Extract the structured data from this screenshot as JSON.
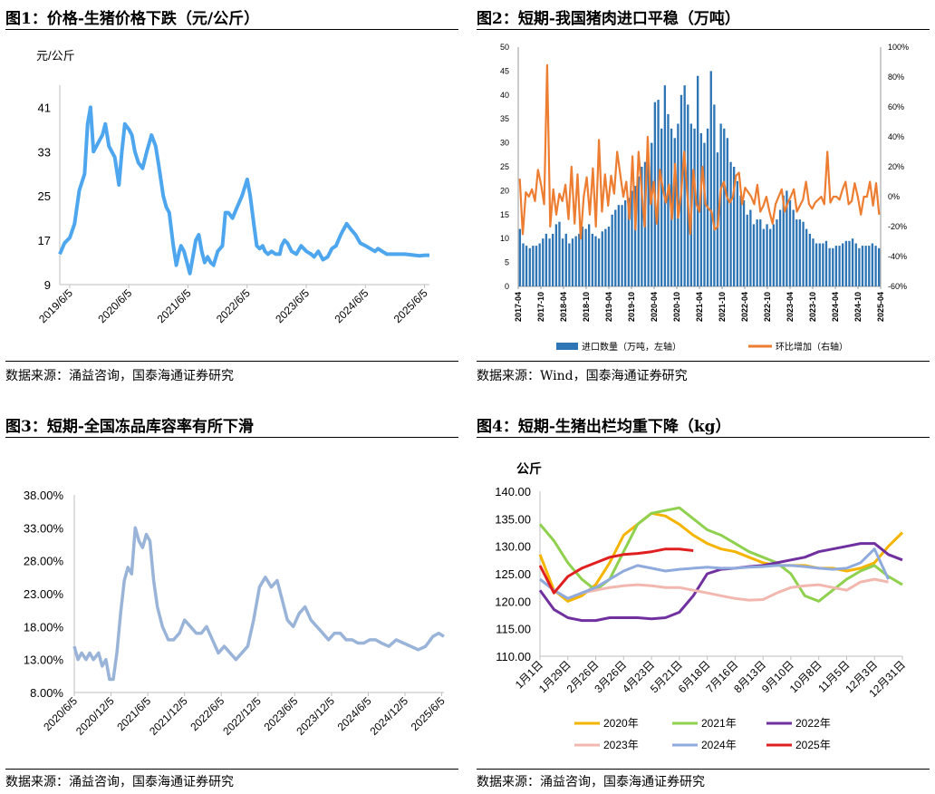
{
  "panels": [
    {
      "title": "图1：价格-生猪价格下跌（元/公斤）",
      "source": "数据来源：涌益咨询，国泰海通证券研究"
    },
    {
      "title": "图2：短期-我国猪肉进口平稳（万吨）",
      "source": "数据来源：Wind，国泰海通证券研究"
    },
    {
      "title": "图3：短期-全国冻品库容率有所下滑",
      "source": "数据来源：涌益咨询，国泰海通证券研究"
    },
    {
      "title": "图4：短期-生猪出栏均重下降（kg）",
      "source": "数据来源：涌益咨询，国泰海通证券研究"
    }
  ],
  "chart_data": [
    {
      "type": "line",
      "title": "价格-生猪价格下跌",
      "ylabel": "元/公斤",
      "color": "#4ea6ee",
      "ylim": [
        9,
        45
      ],
      "yticks": [
        9,
        17,
        25,
        33,
        41
      ],
      "x_range": [
        2019.25,
        2025.5
      ],
      "xtick_values": [
        2019.417,
        2020.417,
        2021.417,
        2022.417,
        2023.417,
        2024.417,
        2025.417
      ],
      "xtick_labels": [
        "2019/6/5",
        "2020/6/5",
        "2021/6/5",
        "2022/6/5",
        "2023/6/5",
        "2024/6/5",
        "2025/6/5"
      ],
      "series": [
        {
          "name": "生猪价格",
          "x": [
            2019.25,
            2019.33,
            2019.42,
            2019.5,
            2019.58,
            2019.67,
            2019.72,
            2019.77,
            2019.82,
            2019.87,
            2019.92,
            2019.97,
            2020.02,
            2020.08,
            2020.13,
            2020.18,
            2020.25,
            2020.3,
            2020.35,
            2020.42,
            2020.47,
            2020.52,
            2020.58,
            2020.65,
            2020.72,
            2020.8,
            2020.87,
            2020.93,
            2021.0,
            2021.05,
            2021.1,
            2021.17,
            2021.22,
            2021.27,
            2021.3,
            2021.35,
            2021.4,
            2021.45,
            2021.5,
            2021.55,
            2021.6,
            2021.65,
            2021.7,
            2021.75,
            2021.8,
            2021.85,
            2021.92,
            2022.0,
            2022.05,
            2022.1,
            2022.17,
            2022.25,
            2022.33,
            2022.42,
            2022.47,
            2022.53,
            2022.58,
            2022.63,
            2022.68,
            2022.72,
            2022.77,
            2022.83,
            2022.9,
            2022.97,
            2023.0,
            2023.05,
            2023.1,
            2023.17,
            2023.25,
            2023.33,
            2023.42,
            2023.5,
            2023.55,
            2023.62,
            2023.7,
            2023.78,
            2023.85,
            2023.92,
            2024.0,
            2024.05,
            2024.1,
            2024.17,
            2024.25,
            2024.33,
            2024.42,
            2024.5,
            2024.58,
            2024.63,
            2024.7,
            2024.78,
            2024.85,
            2024.92,
            2025.0,
            2025.08,
            2025.17,
            2025.25,
            2025.33,
            2025.42,
            2025.5
          ],
          "y": [
            14.5,
            16.5,
            17.5,
            20,
            26,
            29,
            38,
            41,
            33,
            34,
            35,
            36,
            38,
            34,
            33,
            32,
            27,
            33,
            38,
            37,
            36,
            33,
            31,
            30,
            33,
            36,
            34,
            30,
            25,
            23,
            22,
            16,
            12.5,
            15,
            16,
            15,
            13,
            11,
            14,
            17,
            18,
            15,
            13,
            14,
            13,
            12.5,
            15,
            16,
            22,
            22,
            21,
            23,
            25,
            28,
            25,
            20,
            16,
            15.5,
            16,
            15,
            14.5,
            15,
            14.5,
            14.5,
            16,
            17,
            16.5,
            15,
            14.5,
            16,
            15,
            14.5,
            14,
            15,
            13.5,
            14,
            15.5,
            16,
            18,
            19,
            20,
            19,
            18,
            16.5,
            16,
            15.5,
            15,
            15.5,
            15,
            14.5,
            14.5,
            14.5,
            14.5,
            14.5,
            14.4,
            14.3,
            14.2,
            14.3,
            14.3
          ]
        }
      ]
    },
    {
      "type": "bar+line",
      "title": "短期-我国猪肉进口平稳",
      "legend": [
        "进口数量（万吨，左轴）",
        "环比增加（右轴）"
      ],
      "y_left": {
        "min": 0,
        "max": 50,
        "ticks": [
          0,
          5,
          10,
          15,
          20,
          25,
          30,
          35,
          40,
          45,
          50
        ]
      },
      "y_right": {
        "min": -60,
        "max": 100,
        "ticks": [
          "-60%",
          "-40%",
          "-20%",
          "0%",
          "20%",
          "40%",
          "60%",
          "80%",
          "100%"
        ]
      },
      "xtick_labels": [
        "2017-04",
        "2017-10",
        "2018-04",
        "2018-10",
        "2019-04",
        "2019-10",
        "2020-04",
        "2020-10",
        "2021-04",
        "2021-10",
        "2022-04",
        "2022-10",
        "2023-04",
        "2023-10",
        "2024-04",
        "2024-10",
        "2025-04"
      ],
      "series": [
        {
          "name": "进口数量（万吨，左轴）",
          "color": "#2e75b6",
          "values": [
            12,
            9,
            8.5,
            8,
            8.5,
            8.5,
            9,
            10,
            11,
            10,
            11,
            13,
            13.5,
            10,
            11,
            9,
            10,
            10.5,
            11,
            12.5,
            12,
            13,
            11,
            10.5,
            10,
            11.5,
            12,
            12.5,
            15,
            16,
            17,
            17,
            18,
            18.5,
            20,
            21,
            23,
            25,
            26,
            27,
            30,
            38.5,
            39,
            33,
            42,
            36,
            33,
            31,
            34,
            40,
            42,
            38,
            34,
            33,
            44,
            32,
            30,
            33,
            45,
            38,
            28,
            34,
            33,
            31,
            26,
            25,
            22,
            19,
            18,
            15,
            16,
            13,
            14,
            14,
            12,
            13,
            12,
            13,
            14,
            16,
            19,
            20,
            18,
            16,
            14,
            14,
            13.5,
            12,
            11,
            10,
            9,
            9,
            9,
            9.5,
            8,
            8,
            8.5,
            8.5,
            9,
            9.5,
            9.5,
            10,
            9,
            8,
            8.5,
            8.5,
            8.5,
            9,
            8.5,
            8
          ]
        },
        {
          "name": "环比增加（右轴）",
          "color": "#ed7d31",
          "values": [
            12,
            -25,
            3,
            0,
            5,
            -3,
            18,
            8,
            -5,
            88,
            -20,
            5,
            -12,
            2,
            -3,
            8,
            -15,
            20,
            -18,
            15,
            -28,
            0,
            13,
            -12,
            19,
            -20,
            38,
            -10,
            15,
            -6,
            14,
            2,
            30,
            15,
            0,
            10,
            -15,
            27,
            -22,
            30,
            5,
            -20,
            40,
            -5,
            10,
            -18,
            18,
            5,
            -4,
            8,
            -15,
            22,
            -14,
            2,
            30,
            2,
            -25,
            18,
            -5,
            -10,
            20,
            -5,
            -8,
            -10,
            -22,
            -20,
            5,
            10,
            0,
            -4,
            0,
            14,
            16,
            -5,
            6,
            3,
            0,
            -5,
            8,
            -10,
            -6,
            0,
            -10,
            -18,
            -5,
            0,
            5,
            -10,
            -4,
            0,
            5,
            -10,
            -6,
            -2,
            10,
            -5,
            -8,
            -4,
            -2,
            0,
            -5,
            30,
            -4,
            0,
            0,
            -2,
            5,
            10,
            -5,
            -3,
            9,
            0,
            -12,
            0,
            0,
            10,
            -6,
            9,
            -12
          ]
        }
      ]
    },
    {
      "type": "line",
      "title": "短期-全国冻品库容率有所下滑",
      "color": "#99b4d8",
      "ylim": [
        8,
        38
      ],
      "ytick_labels": [
        "8.00%",
        "13.00%",
        "18.00%",
        "23.00%",
        "28.00%",
        "33.00%",
        "38.00%"
      ],
      "x_range": [
        2020.42,
        2025.45
      ],
      "xtick_values": [
        2020.42,
        2020.92,
        2021.42,
        2021.92,
        2022.42,
        2022.92,
        2023.42,
        2023.92,
        2024.42,
        2024.92,
        2025.42
      ],
      "xtick_labels": [
        "2020/6/5",
        "2020/12/5",
        "2021/6/5",
        "2021/12/5",
        "2022/6/5",
        "2022/12/5",
        "2023/6/5",
        "2023/12/5",
        "2024/6/5",
        "2024/12/5",
        "2025/6/5"
      ],
      "series": [
        {
          "name": "库容率",
          "x": [
            2020.42,
            2020.47,
            2020.52,
            2020.58,
            2020.63,
            2020.68,
            2020.75,
            2020.8,
            2020.85,
            2020.9,
            2020.95,
            2021.0,
            2021.05,
            2021.1,
            2021.15,
            2021.2,
            2021.25,
            2021.3,
            2021.35,
            2021.4,
            2021.45,
            2021.5,
            2021.55,
            2021.62,
            2021.7,
            2021.77,
            2021.85,
            2021.92,
            2022.0,
            2022.08,
            2022.15,
            2022.22,
            2022.3,
            2022.38,
            2022.46,
            2022.54,
            2022.62,
            2022.7,
            2022.78,
            2022.86,
            2022.94,
            2023.02,
            2023.1,
            2023.18,
            2023.25,
            2023.32,
            2023.4,
            2023.48,
            2023.56,
            2023.64,
            2023.72,
            2023.8,
            2023.88,
            2023.96,
            2024.04,
            2024.12,
            2024.2,
            2024.28,
            2024.36,
            2024.44,
            2024.52,
            2024.6,
            2024.7,
            2024.8,
            2024.9,
            2025.0,
            2025.1,
            2025.2,
            2025.3,
            2025.38,
            2025.45
          ],
          "y": [
            15,
            13,
            14,
            13,
            14,
            13,
            14,
            12,
            13,
            10,
            10,
            14,
            20,
            25,
            27,
            26,
            33,
            31,
            30,
            32,
            31,
            25,
            21,
            18,
            16,
            16,
            17,
            19,
            18,
            17,
            17,
            18,
            16,
            14,
            15,
            14,
            13,
            14,
            15,
            19,
            24,
            25.5,
            24,
            25,
            22,
            19,
            18,
            20,
            21,
            19,
            18,
            17,
            16,
            17,
            17,
            16,
            16,
            15.5,
            15.5,
            16,
            16,
            15.5,
            15,
            16,
            15.5,
            15,
            14.5,
            15,
            16.5,
            17,
            16.5
          ]
        }
      ]
    },
    {
      "type": "line",
      "title": "短期-生猪出栏均重下降",
      "ylabel": "公斤",
      "ylim": [
        110,
        140
      ],
      "ytick_labels": [
        "110.00",
        "115.00",
        "120.00",
        "125.00",
        "130.00",
        "135.00",
        "140.00"
      ],
      "x_range": [
        0,
        52
      ],
      "xtick_values": [
        0,
        4,
        8,
        12,
        16,
        20,
        24,
        28,
        32,
        36,
        40,
        44,
        48,
        52
      ],
      "xtick_labels": [
        "1月1日",
        "1月29日",
        "2月26日",
        "3月26日",
        "4月23日",
        "5月21日",
        "6月18日",
        "7月16日",
        "8月13日",
        "9月10日",
        "10月8日",
        "11月5日",
        "12月3日",
        "12月31日"
      ],
      "series": [
        {
          "name": "2020年",
          "color": "#f4b400",
          "x": [
            0,
            2,
            4,
            6,
            8,
            10,
            12,
            14,
            16,
            18,
            20,
            22,
            24,
            26,
            28,
            30,
            32,
            34,
            36,
            38,
            40,
            42,
            44,
            46,
            48,
            50,
            52
          ],
          "y": [
            128.5,
            122,
            120,
            121,
            123,
            127,
            132,
            134,
            136,
            135.5,
            134,
            132,
            130.5,
            129.5,
            129,
            128,
            127,
            126.5,
            126.5,
            126.5,
            126,
            126,
            125.5,
            126,
            127,
            130,
            132.5
          ]
        },
        {
          "name": "2021年",
          "color": "#8fd14f",
          "x": [
            0,
            2,
            4,
            6,
            8,
            10,
            12,
            14,
            16,
            18,
            20,
            22,
            24,
            26,
            28,
            30,
            32,
            34,
            36,
            38,
            40,
            42,
            44,
            46,
            48,
            50,
            52
          ],
          "y": [
            134,
            131,
            127,
            124,
            122,
            124,
            129,
            134,
            136,
            136.5,
            137,
            135,
            133,
            132,
            130.5,
            129,
            128,
            127,
            125,
            121,
            120,
            122,
            124,
            125.5,
            126.5,
            124.5,
            123
          ]
        },
        {
          "name": "2022年",
          "color": "#7030a0",
          "x": [
            0,
            2,
            4,
            6,
            8,
            10,
            12,
            14,
            16,
            18,
            20,
            22,
            24,
            26,
            28,
            30,
            32,
            34,
            36,
            38,
            40,
            42,
            44,
            46,
            48,
            50,
            52
          ],
          "y": [
            122,
            118.5,
            117,
            116.5,
            116.5,
            117,
            117,
            117,
            116.8,
            117,
            118,
            121,
            125,
            125.8,
            126,
            126.3,
            126.5,
            127,
            127.5,
            128,
            129,
            129.5,
            130,
            130.5,
            130.5,
            128.5,
            127.5
          ]
        },
        {
          "name": "2023年",
          "color": "#f2b8b0",
          "x": [
            0,
            2,
            4,
            6,
            8,
            10,
            12,
            14,
            16,
            18,
            20,
            22,
            24,
            26,
            28,
            30,
            32,
            34,
            36,
            38,
            40,
            42,
            44,
            46,
            48,
            50
          ],
          "y": [
            124,
            122,
            120.5,
            121.5,
            122,
            122.5,
            122.8,
            123,
            122.8,
            122.5,
            122.5,
            122,
            121.5,
            121,
            120.5,
            120.2,
            120.3,
            121.5,
            122.5,
            122.8,
            123,
            122.5,
            122,
            123.5,
            124,
            123.5
          ]
        },
        {
          "name": "2024年",
          "color": "#8faadc",
          "x": [
            0,
            2,
            4,
            6,
            8,
            10,
            12,
            14,
            16,
            18,
            20,
            22,
            24,
            26,
            28,
            30,
            32,
            34,
            36,
            38,
            40,
            42,
            44,
            46,
            48,
            50
          ],
          "y": [
            124,
            122,
            120.5,
            121.5,
            122.5,
            124,
            125.5,
            126.5,
            126,
            125.5,
            125.8,
            126,
            126.2,
            126,
            126,
            126.2,
            126.3,
            126.5,
            126.5,
            126.3,
            126,
            125.8,
            126,
            127,
            129.5,
            124
          ]
        },
        {
          "name": "2025年",
          "color": "#e02020",
          "x": [
            0,
            2,
            4,
            6,
            8,
            10,
            12,
            14,
            16,
            18,
            20,
            22
          ],
          "y": [
            126.5,
            121.5,
            124.5,
            126,
            127,
            128,
            128.5,
            128.7,
            129,
            129.5,
            129.5,
            129.2
          ]
        }
      ]
    }
  ]
}
